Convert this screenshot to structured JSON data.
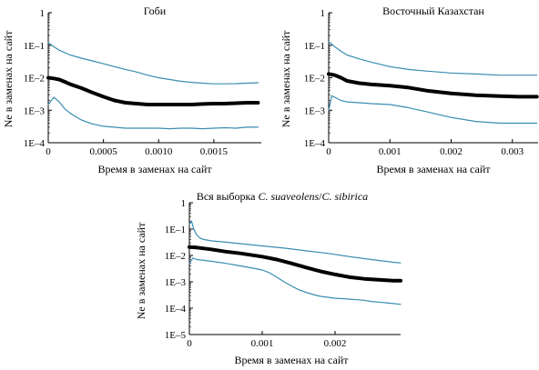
{
  "chart_data": [
    {
      "type": "line",
      "title": "Гоби",
      "xlabel": "Время в заменах на сайт",
      "ylabel": "Ne в заменах на сайт",
      "xlim": [
        0,
        0.00193
      ],
      "ylim": [
        0.0001,
        1
      ],
      "y_scale": "log",
      "x_ticks": [
        0,
        0.0005,
        0.001,
        0.0015
      ],
      "x_tick_labels": [
        "0",
        "0.0005",
        "0.0010",
        "0.0015"
      ],
      "y_ticks": [
        0.0001,
        0.001,
        0.01,
        0.1,
        1
      ],
      "y_tick_labels": [
        "1E–4",
        "1E–3",
        "1E–2",
        "1E–1",
        "1"
      ],
      "grid": false,
      "series": [
        {
          "color": "#3a8db0",
          "width": 1.2,
          "x": [
            0,
            5e-05,
            0.0001,
            0.0002,
            0.0003,
            0.0004,
            0.0005,
            0.0006,
            0.0007,
            0.0008,
            0.0009,
            0.001,
            0.0011,
            0.0012,
            0.0013,
            0.0014,
            0.0015,
            0.0016,
            0.0017,
            0.0018,
            0.0019
          ],
          "y": [
            0.12,
            0.09,
            0.07,
            0.05,
            0.04,
            0.033,
            0.027,
            0.022,
            0.018,
            0.015,
            0.012,
            0.01,
            0.0088,
            0.0078,
            0.0072,
            0.0068,
            0.0065,
            0.0065,
            0.0066,
            0.0068,
            0.007
          ]
        },
        {
          "color": "#000000",
          "width": 4,
          "x": [
            0,
            5e-05,
            0.0001,
            0.00015,
            0.0002,
            0.0003,
            0.0004,
            0.0005,
            0.0006,
            0.0007,
            0.0008,
            0.0009,
            0.001,
            0.0011,
            0.0012,
            0.0013,
            0.0014,
            0.0015,
            0.0016,
            0.0017,
            0.0018,
            0.0019
          ],
          "y": [
            0.01,
            0.0095,
            0.0088,
            0.0075,
            0.0063,
            0.0048,
            0.0035,
            0.0026,
            0.002,
            0.0017,
            0.0016,
            0.0015,
            0.0015,
            0.0015,
            0.0015,
            0.0015,
            0.00155,
            0.0016,
            0.0016,
            0.00165,
            0.0017,
            0.0017
          ]
        },
        {
          "color": "#3a8db0",
          "width": 1.2,
          "x": [
            0,
            5e-05,
            0.0001,
            0.00015,
            0.0002,
            0.0003,
            0.0004,
            0.0005,
            0.0006,
            0.0007,
            0.0008,
            0.0009,
            0.001,
            0.0011,
            0.0012,
            0.0013,
            0.0014,
            0.0015,
            0.0016,
            0.0017,
            0.0018,
            0.0019
          ],
          "y": [
            0.0015,
            0.0025,
            0.0018,
            0.0011,
            0.0008,
            0.0005,
            0.00038,
            0.00032,
            0.0003,
            0.00028,
            0.00028,
            0.00028,
            0.00028,
            0.00027,
            0.00028,
            0.00028,
            0.00027,
            0.00028,
            0.00029,
            0.00028,
            0.0003,
            0.0003
          ]
        }
      ]
    },
    {
      "type": "line",
      "title": "Восточный Казахстан",
      "xlabel": "Время в заменах на сайт",
      "ylabel": "Ne в заменах на сайт",
      "xlim": [
        0,
        0.00342
      ],
      "ylim": [
        0.0001,
        1
      ],
      "y_scale": "log",
      "x_ticks": [
        0,
        0.001,
        0.002,
        0.003
      ],
      "x_tick_labels": [
        "0",
        "0.001",
        "0.002",
        "0.003"
      ],
      "y_ticks": [
        0.0001,
        0.001,
        0.01,
        0.1,
        1
      ],
      "y_tick_labels": [
        "1E–4",
        "1E–3",
        "1E–2",
        "1E–1",
        "1"
      ],
      "grid": false,
      "series": [
        {
          "color": "#3a8db0",
          "width": 1.2,
          "x": [
            0,
            0.0001,
            0.0002,
            0.0003,
            0.0005,
            0.0007,
            0.001,
            0.0013,
            0.0016,
            0.002,
            0.0024,
            0.0028,
            0.0031,
            0.0034
          ],
          "y": [
            0.13,
            0.09,
            0.065,
            0.05,
            0.038,
            0.03,
            0.022,
            0.018,
            0.016,
            0.014,
            0.013,
            0.012,
            0.012,
            0.012
          ]
        },
        {
          "color": "#000000",
          "width": 4,
          "x": [
            0,
            0.0001,
            0.0002,
            0.0003,
            0.0005,
            0.0007,
            0.001,
            0.0013,
            0.0016,
            0.002,
            0.0024,
            0.0028,
            0.0031,
            0.0034
          ],
          "y": [
            0.013,
            0.012,
            0.01,
            0.008,
            0.0068,
            0.0062,
            0.0057,
            0.005,
            0.004,
            0.0033,
            0.0029,
            0.0027,
            0.0026,
            0.0026
          ]
        },
        {
          "color": "#3a8db0",
          "width": 1.2,
          "x": [
            0,
            5e-05,
            0.0001,
            0.0002,
            0.0003,
            0.0005,
            0.0007,
            0.001,
            0.0013,
            0.0016,
            0.002,
            0.0024,
            0.0028,
            0.0031,
            0.0034
          ],
          "y": [
            0.001,
            0.0028,
            0.0025,
            0.002,
            0.0018,
            0.0017,
            0.0016,
            0.0015,
            0.0012,
            0.0009,
            0.0006,
            0.00045,
            0.0004,
            0.0004,
            0.0004
          ]
        }
      ]
    },
    {
      "type": "line",
      "title_prefix": "Вся выборка ",
      "title_species_1": "C. suaveolens",
      "title_separator": "/",
      "title_species_2": "C. sibirica",
      "xlabel": "Время в заменах на сайт",
      "ylabel": "Ne в заменах на сайт",
      "xlim": [
        0,
        0.0029
      ],
      "ylim": [
        1e-05,
        1
      ],
      "y_scale": "log",
      "x_ticks": [
        0,
        0.001,
        0.002
      ],
      "x_tick_labels": [
        "0",
        "0.001",
        "0.002"
      ],
      "y_ticks": [
        1e-05,
        0.0001,
        0.001,
        0.01,
        0.1,
        1
      ],
      "y_tick_labels": [
        "1E–5",
        "1E–4",
        "1E–3",
        "1E–2",
        "1E–1",
        "1"
      ],
      "grid": false,
      "series": [
        {
          "color": "#3a8db0",
          "width": 1.2,
          "x": [
            0,
            3e-05,
            6e-05,
            0.0001,
            0.00015,
            0.0002,
            0.0003,
            0.0005,
            0.0007,
            0.001,
            0.0013,
            0.0016,
            0.0019,
            0.0022,
            0.0025,
            0.0028,
            0.0029
          ],
          "y": [
            0.15,
            0.2,
            0.1,
            0.06,
            0.045,
            0.04,
            0.036,
            0.032,
            0.028,
            0.023,
            0.019,
            0.015,
            0.012,
            0.009,
            0.007,
            0.0055,
            0.0052
          ]
        },
        {
          "color": "#000000",
          "width": 4,
          "x": [
            0,
            0.0001,
            0.0003,
            0.0005,
            0.0007,
            0.001,
            0.0012,
            0.0014,
            0.0016,
            0.0018,
            0.002,
            0.0022,
            0.0024,
            0.0026,
            0.0028,
            0.0029
          ],
          "y": [
            0.021,
            0.02,
            0.017,
            0.014,
            0.012,
            0.009,
            0.007,
            0.005,
            0.0035,
            0.0025,
            0.0019,
            0.0015,
            0.0013,
            0.0012,
            0.0011,
            0.0011
          ]
        },
        {
          "color": "#3a8db0",
          "width": 1.2,
          "x": [
            0,
            5e-05,
            0.0001,
            0.0002,
            0.0003,
            0.0005,
            0.0007,
            0.0009,
            0.001,
            0.0011,
            0.0012,
            0.0013,
            0.0014,
            0.0015,
            0.0016,
            0.0017,
            0.0018,
            0.0019,
            0.002,
            0.0021,
            0.0022,
            0.0023,
            0.0024,
            0.0025,
            0.0026,
            0.0027,
            0.0028,
            0.0029
          ],
          "y": [
            0.005,
            0.008,
            0.007,
            0.0065,
            0.006,
            0.005,
            0.004,
            0.0032,
            0.0028,
            0.0022,
            0.0015,
            0.001,
            0.0007,
            0.0005,
            0.0004,
            0.00033,
            0.00028,
            0.00026,
            0.00024,
            0.00023,
            0.00022,
            0.00021,
            0.0002,
            0.00018,
            0.00017,
            0.00016,
            0.00015,
            0.00014
          ]
        }
      ]
    }
  ]
}
